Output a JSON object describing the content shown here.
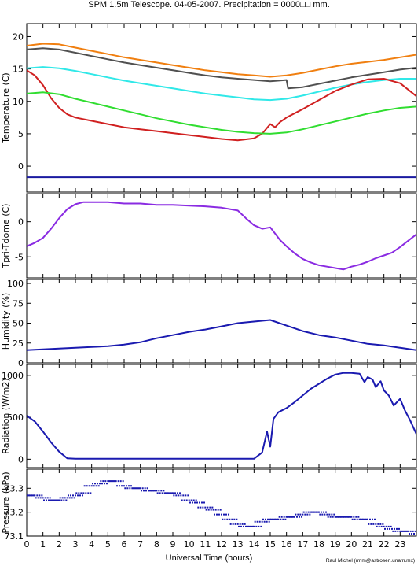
{
  "title": "SPM 1.5m Telescope. 04-05-2007. Precipitation = 0000□□ mm.",
  "credit": "Raul Michel (rmm@astrosen.unam.mx)",
  "chart_data": {
    "type": "line",
    "xlabel": "Universal Time (hours)",
    "xlim": [
      0,
      24
    ],
    "xticks": [
      0,
      1,
      2,
      3,
      4,
      5,
      6,
      7,
      8,
      9,
      10,
      11,
      12,
      13,
      14,
      15,
      16,
      17,
      18,
      19,
      20,
      21,
      22,
      23
    ],
    "panels": [
      {
        "ylabel": "Temperature (C)",
        "ylim": [
          -4,
          22
        ],
        "yticks": [
          0,
          5,
          10,
          15,
          20
        ],
        "series": [
          {
            "color": "#f07f10",
            "x": [
              0,
              1,
              2,
              3,
              4,
              5,
              6,
              7,
              8,
              9,
              10,
              11,
              12,
              13,
              14,
              15,
              16,
              17,
              18,
              19,
              20,
              21,
              22,
              23,
              24
            ],
            "y": [
              18.6,
              18.9,
              18.8,
              18.3,
              17.8,
              17.3,
              16.8,
              16.4,
              16.0,
              15.6,
              15.2,
              14.8,
              14.5,
              14.2,
              14.0,
              13.8,
              14.0,
              14.4,
              14.9,
              15.4,
              15.8,
              16.1,
              16.4,
              16.8,
              17.2
            ]
          },
          {
            "color": "#505050",
            "x": [
              0,
              1,
              2,
              3,
              4,
              5,
              6,
              7,
              8,
              9,
              10,
              11,
              12,
              13,
              14,
              15,
              16,
              16.1,
              17,
              18,
              19,
              20,
              21,
              22,
              23,
              24
            ],
            "y": [
              18.0,
              18.2,
              18.0,
              17.5,
              17.0,
              16.5,
              16.0,
              15.6,
              15.2,
              14.8,
              14.4,
              14.0,
              13.7,
              13.5,
              13.3,
              13.1,
              13.3,
              12.0,
              12.2,
              12.7,
              13.2,
              13.7,
              14.1,
              14.5,
              14.9,
              15.2
            ]
          },
          {
            "color": "#30e8e8",
            "x": [
              0,
              1,
              2,
              3,
              4,
              5,
              6,
              7,
              8,
              9,
              10,
              11,
              12,
              13,
              14,
              15,
              16,
              17,
              18,
              19,
              20,
              21,
              22,
              23,
              24
            ],
            "y": [
              15.1,
              15.3,
              15.1,
              14.7,
              14.2,
              13.7,
              13.2,
              12.8,
              12.4,
              12.0,
              11.6,
              11.2,
              10.9,
              10.6,
              10.3,
              10.2,
              10.4,
              10.9,
              11.5,
              12.1,
              12.6,
              13.0,
              13.3,
              13.5,
              13.5
            ]
          },
          {
            "color": "#d02020",
            "x": [
              0,
              0.5,
              1,
              1.5,
              2,
              2.5,
              3,
              4,
              5,
              6,
              7,
              8,
              9,
              10,
              11,
              12,
              13,
              14,
              14.5,
              15,
              15.3,
              15.6,
              16,
              17,
              18,
              19,
              20,
              21,
              22,
              23,
              24
            ],
            "y": [
              14.8,
              14.0,
              12.5,
              10.5,
              9.0,
              8.0,
              7.5,
              7.0,
              6.5,
              6.0,
              5.7,
              5.4,
              5.1,
              4.8,
              4.5,
              4.2,
              4.0,
              4.3,
              5.0,
              6.5,
              6.0,
              6.8,
              7.5,
              8.8,
              10.2,
              11.6,
              12.6,
              13.4,
              13.5,
              12.8,
              10.8
            ]
          },
          {
            "color": "#30dd30",
            "x": [
              0,
              1,
              2,
              3,
              4,
              5,
              6,
              7,
              8,
              9,
              10,
              11,
              12,
              13,
              14,
              15,
              16,
              17,
              18,
              19,
              20,
              21,
              22,
              23,
              24
            ],
            "y": [
              11.2,
              11.4,
              11.1,
              10.4,
              9.8,
              9.2,
              8.6,
              8.0,
              7.4,
              6.9,
              6.4,
              6.0,
              5.6,
              5.3,
              5.1,
              5.0,
              5.2,
              5.7,
              6.3,
              6.9,
              7.5,
              8.1,
              8.6,
              9.0,
              9.2
            ]
          },
          {
            "color": "#1a1aa0",
            "x": [
              0,
              24
            ],
            "y": [
              -1.7,
              -1.7
            ]
          }
        ]
      },
      {
        "ylabel": "Tpri-Tdome (C)",
        "ylim": [
          -8,
          4
        ],
        "yticks": [
          -5,
          0
        ],
        "series": [
          {
            "color": "#8a2be2",
            "x": [
              0,
              0.5,
              1,
              1.5,
              2,
              2.5,
              3,
              3.5,
              4,
              5,
              6,
              7,
              8,
              9,
              10,
              11,
              12,
              13,
              13.5,
              14,
              14.5,
              15,
              15.3,
              15.6,
              16,
              16.5,
              17,
              17.5,
              18,
              18.5,
              19,
              19.5,
              20,
              20.5,
              21,
              21.5,
              22,
              22.5,
              23,
              23.5,
              24
            ],
            "y": [
              -3.5,
              -3.0,
              -2.3,
              -1.0,
              0.5,
              1.8,
              2.5,
              2.8,
              2.8,
              2.8,
              2.6,
              2.6,
              2.4,
              2.4,
              2.3,
              2.2,
              2.0,
              1.6,
              0.5,
              -0.5,
              -1.0,
              -0.8,
              -1.7,
              -2.6,
              -3.5,
              -4.5,
              -5.3,
              -5.8,
              -6.2,
              -6.4,
              -6.6,
              -6.8,
              -6.4,
              -6.1,
              -5.7,
              -5.2,
              -4.8,
              -4.4,
              -3.6,
              -2.7,
              -1.8
            ]
          }
        ]
      },
      {
        "ylabel": "Humidity (%)",
        "ylim": [
          0,
          105
        ],
        "yticks": [
          0,
          25,
          50,
          75,
          100
        ],
        "series": [
          {
            "color": "#1a1ab0",
            "x": [
              0,
              1,
              2,
              3,
              4,
              5,
              6,
              7,
              8,
              9,
              10,
              11,
              12,
              13,
              14,
              15,
              16,
              17,
              18,
              19,
              20,
              21,
              22,
              23,
              24
            ],
            "y": [
              16,
              17,
              18,
              19,
              20,
              21,
              23,
              26,
              31,
              35,
              39,
              42,
              46,
              50,
              52,
              54,
              47,
              40,
              35,
              32,
              28,
              24,
              22,
              19,
              16
            ]
          }
        ]
      },
      {
        "ylabel": "Radiation (W/m2)",
        "ylim": [
          -100,
          1130
        ],
        "yticks": [
          0,
          500,
          1000
        ],
        "series": [
          {
            "color": "#1a1ab0",
            "x": [
              0,
              0.5,
              1,
              1.5,
              2,
              2.5,
              3,
              4,
              5,
              6,
              7,
              8,
              9,
              10,
              11,
              12,
              13,
              14,
              14.5,
              14.8,
              15,
              15.2,
              15.5,
              16,
              16.5,
              17,
              17.5,
              18,
              18.5,
              19,
              19.5,
              20,
              20.5,
              20.8,
              21,
              21.3,
              21.5,
              21.8,
              22,
              22.3,
              22.6,
              23,
              23.3,
              23.6,
              24
            ],
            "y": [
              520,
              450,
              330,
              200,
              90,
              10,
              5,
              5,
              5,
              5,
              5,
              5,
              5,
              5,
              5,
              5,
              5,
              5,
              80,
              330,
              150,
              480,
              560,
              610,
              680,
              760,
              840,
              900,
              960,
              1010,
              1030,
              1030,
              1020,
              920,
              980,
              950,
              860,
              930,
              820,
              760,
              640,
              720,
              580,
              470,
              300
            ]
          }
        ]
      },
      {
        "ylabel": "Pressure (kPa)",
        "ylim": [
          73.1,
          73.38
        ],
        "yticks": [
          73.1,
          73.2,
          73.3
        ],
        "series": [
          {
            "color": "#1a1ab0",
            "x": [
              0,
              0.5,
              1,
              1.5,
              2,
              2.5,
              3,
              3.5,
              4,
              4.5,
              5,
              5.5,
              6,
              6.5,
              7,
              7.5,
              8,
              8.5,
              9,
              9.5,
              10,
              10.5,
              11,
              11.5,
              12,
              12.5,
              13,
              13.5,
              14,
              14.5,
              15,
              15.5,
              16,
              16.5,
              17,
              17.5,
              18,
              18.5,
              19,
              19.5,
              20,
              20.5,
              21,
              21.5,
              22,
              22.5,
              23,
              23.5,
              24
            ],
            "y": [
              73.27,
              73.27,
              73.26,
              73.25,
              73.25,
              73.26,
              73.27,
              73.28,
              73.31,
              73.32,
              73.33,
              73.33,
              73.31,
              73.3,
              73.3,
              73.29,
              73.29,
              73.28,
              73.28,
              73.27,
              73.25,
              73.24,
              73.22,
              73.21,
              73.19,
              73.17,
              73.15,
              73.14,
              73.14,
              73.16,
              73.17,
              73.17,
              73.18,
              73.18,
              73.19,
              73.2,
              73.2,
              73.19,
              73.18,
              73.18,
              73.18,
              73.17,
              73.17,
              73.15,
              73.14,
              73.13,
              73.12,
              73.12,
              73.11
            ]
          }
        ]
      }
    ]
  }
}
